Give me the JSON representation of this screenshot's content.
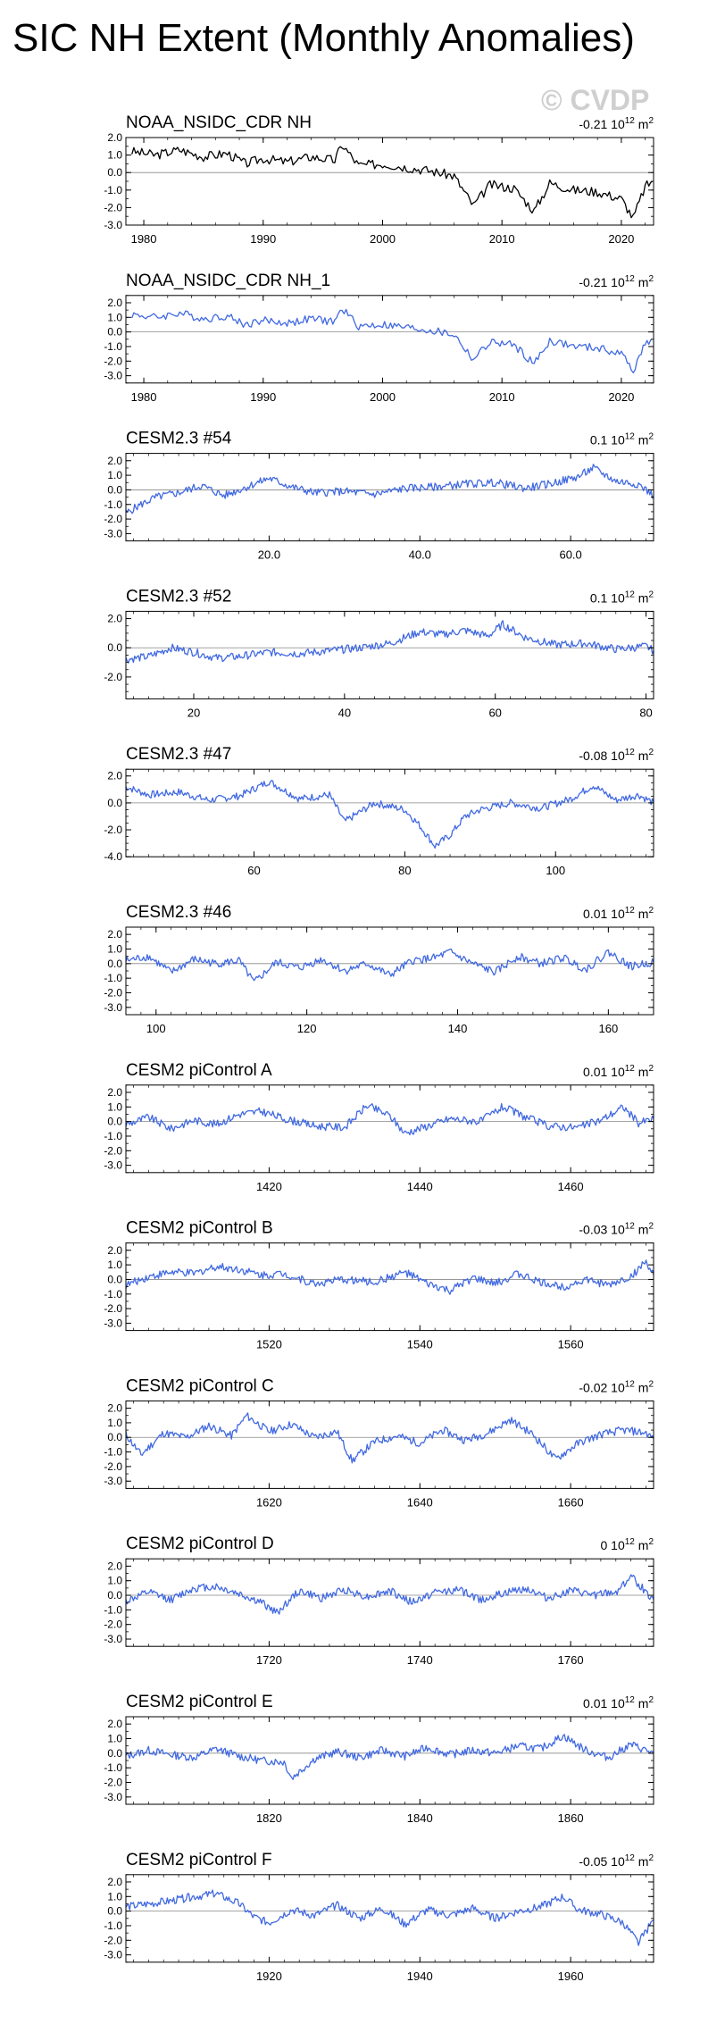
{
  "title": "SIC NH Extent (Monthly Anomalies)",
  "watermark": "© CVDP",
  "colors": {
    "observed": "#000000",
    "model": "#4169e1",
    "zero_line": "#888888"
  },
  "chart_data": [
    {
      "type": "line",
      "title": "NOAA_NSIDC_CDR NH",
      "stat": "-0.21",
      "units_suffix": "12",
      "units_tail": " m",
      "units_sup": "2",
      "color": "#000000",
      "xlim": [
        1978.5,
        2022.7
      ],
      "ylim": [
        -3.0,
        2.0
      ],
      "yticks": [
        -3,
        -2,
        -1,
        0,
        1,
        2
      ],
      "ytick_labels": [
        "-3.0",
        "-2.0",
        "-1.0",
        "0.0",
        "1.0",
        "2.0"
      ],
      "xticks": [
        1980,
        1990,
        2000,
        2010,
        2020
      ],
      "xtick_labels": [
        "1980",
        "1990",
        "2000",
        "2010",
        "2020"
      ],
      "x": [
        1979,
        1981,
        1983,
        1985,
        1987,
        1988.5,
        1990,
        1992,
        1994,
        1996,
        1996.6,
        1998,
        2000,
        2002,
        2004,
        2006,
        2007.6,
        2009,
        2011,
        2012.7,
        2014,
        2016,
        2018,
        2020,
        2021,
        2022,
        2022.6
      ],
      "y": [
        1.2,
        1.0,
        1.3,
        0.9,
        1.1,
        0.5,
        0.8,
        0.6,
        0.9,
        0.7,
        1.6,
        0.4,
        0.5,
        0.3,
        0.1,
        -0.2,
        -1.9,
        -0.7,
        -0.9,
        -2.2,
        -0.6,
        -1.0,
        -1.1,
        -1.5,
        -2.6,
        -0.8,
        -0.5
      ]
    },
    {
      "type": "line",
      "title": "NOAA_NSIDC_CDR NH_1",
      "stat": "-0.21",
      "units_suffix": "12",
      "units_tail": " m",
      "units_sup": "2",
      "color": "#4169e1",
      "xlim": [
        1978.5,
        2022.7
      ],
      "ylim": [
        -3.5,
        2.5
      ],
      "yticks": [
        -3,
        -2,
        -1,
        0,
        1,
        2
      ],
      "ytick_labels": [
        "-3.0",
        "-2.0",
        "-1.0",
        "0.0",
        "1.0",
        "2.0"
      ],
      "xticks": [
        1980,
        1990,
        2000,
        2010,
        2020
      ],
      "xtick_labels": [
        "1980",
        "1990",
        "2000",
        "2010",
        "2020"
      ],
      "x": [
        1979,
        1981,
        1983,
        1985,
        1987,
        1988.5,
        1990,
        1992,
        1994,
        1996,
        1996.6,
        1998,
        2000,
        2002,
        2004,
        2006,
        2007.6,
        2009,
        2011,
        2012.7,
        2014,
        2016,
        2018,
        2020,
        2021,
        2022,
        2022.6
      ],
      "y": [
        1.2,
        1.0,
        1.3,
        0.9,
        1.1,
        0.5,
        0.8,
        0.6,
        0.9,
        0.7,
        1.6,
        0.4,
        0.5,
        0.3,
        0.1,
        -0.2,
        -1.9,
        -0.7,
        -0.9,
        -2.2,
        -0.6,
        -1.0,
        -1.1,
        -1.5,
        -2.6,
        -0.8,
        -0.5
      ]
    },
    {
      "type": "line",
      "title": "CESM2.3 #54",
      "stat": "0.1",
      "units_suffix": "12",
      "units_tail": " m",
      "units_sup": "2",
      "color": "#4169e1",
      "xlim": [
        1,
        71
      ],
      "ylim": [
        -3.5,
        2.5
      ],
      "yticks": [
        -3,
        -2,
        -1,
        0,
        1,
        2
      ],
      "ytick_labels": [
        "-3.0",
        "-2.0",
        "-1.0",
        "0.0",
        "1.0",
        "2.0"
      ],
      "xticks": [
        20,
        40,
        60
      ],
      "xtick_labels": [
        "20.0",
        "40.0",
        "60.0"
      ],
      "x": [
        1,
        3,
        5,
        8,
        11,
        14,
        17,
        20,
        23,
        26,
        30,
        34,
        38,
        42,
        46,
        50,
        54,
        58,
        61,
        63,
        66,
        69,
        71
      ],
      "y": [
        -1.6,
        -1.0,
        -0.5,
        -0.2,
        0.3,
        -0.4,
        0.2,
        0.8,
        0.2,
        -0.2,
        -0.1,
        -0.3,
        0.1,
        0.2,
        0.4,
        0.5,
        0.1,
        0.5,
        0.9,
        1.5,
        0.6,
        0.4,
        -0.4
      ]
    },
    {
      "type": "line",
      "title": "CESM2.3 #52",
      "stat": "0.1",
      "units_suffix": "12",
      "units_tail": " m",
      "units_sup": "2",
      "color": "#4169e1",
      "xlim": [
        11,
        81
      ],
      "ylim": [
        -3.5,
        2.5
      ],
      "yticks": [
        -2,
        0,
        2
      ],
      "ytick_labels": [
        "-2.0",
        "0.0",
        "2.0"
      ],
      "xticks": [
        20,
        40,
        60,
        80
      ],
      "xtick_labels": [
        "20",
        "40",
        "60",
        "80"
      ],
      "x": [
        11,
        14,
        17,
        20,
        23,
        26,
        30,
        34,
        38,
        42,
        46,
        50,
        53,
        56,
        59,
        61,
        64,
        68,
        72,
        76,
        80,
        81
      ],
      "y": [
        -0.8,
        -0.6,
        0.0,
        -0.3,
        -0.7,
        -0.6,
        -0.3,
        -0.4,
        -0.2,
        0.0,
        0.3,
        1.1,
        0.9,
        1.2,
        0.8,
        1.6,
        0.7,
        0.2,
        0.3,
        -0.1,
        0.1,
        -0.2
      ]
    },
    {
      "type": "line",
      "title": "CESM2.3 #47",
      "stat": "-0.08",
      "units_suffix": "12",
      "units_tail": " m",
      "units_sup": "2",
      "color": "#4169e1",
      "xlim": [
        43,
        113
      ],
      "ylim": [
        -4.0,
        2.5
      ],
      "yticks": [
        -4,
        -2,
        0,
        2
      ],
      "ytick_labels": [
        "-4.0",
        "-2.0",
        "0.0",
        "2.0"
      ],
      "xticks": [
        60,
        80,
        100
      ],
      "xtick_labels": [
        "60",
        "80",
        "100"
      ],
      "x": [
        43,
        46,
        50,
        54,
        58,
        62,
        66,
        70,
        72,
        76,
        80,
        82,
        84,
        86,
        88,
        90,
        94,
        98,
        102,
        105,
        108,
        111,
        113
      ],
      "y": [
        1.2,
        0.6,
        0.8,
        0.2,
        0.5,
        1.6,
        0.3,
        0.6,
        -1.4,
        0.0,
        -0.5,
        -1.7,
        -3.2,
        -2.4,
        -1.0,
        -0.5,
        0.0,
        -0.4,
        0.3,
        1.3,
        0.2,
        0.6,
        0.0
      ]
    },
    {
      "type": "line",
      "title": "CESM2.3 #46",
      "stat": "0.01",
      "units_suffix": "12",
      "units_tail": " m",
      "units_sup": "2",
      "color": "#4169e1",
      "xlim": [
        96,
        166
      ],
      "ylim": [
        -3.5,
        2.5
      ],
      "yticks": [
        -3,
        -2,
        -1,
        0,
        1,
        2
      ],
      "ytick_labels": [
        "-3.0",
        "-2.0",
        "-1.0",
        "0.0",
        "1.0",
        "2.0"
      ],
      "xticks": [
        100,
        120,
        140,
        160
      ],
      "xtick_labels": [
        "100",
        "120",
        "140",
        "160"
      ],
      "x": [
        96,
        99,
        102,
        105,
        108,
        111,
        113,
        116,
        119,
        122,
        125,
        128,
        131,
        134,
        137,
        139,
        142,
        145,
        148,
        151,
        154,
        157,
        160,
        163,
        166
      ],
      "y": [
        0.2,
        0.5,
        -0.6,
        0.3,
        0.0,
        0.2,
        -1.3,
        0.1,
        -0.3,
        0.3,
        -0.5,
        0.0,
        -0.8,
        0.2,
        0.4,
        0.8,
        0.0,
        -0.6,
        0.5,
        0.0,
        0.4,
        -0.4,
        0.8,
        -0.2,
        0.1
      ]
    },
    {
      "type": "line",
      "title": "CESM2 piControl A",
      "stat": "0.01",
      "units_suffix": "12",
      "units_tail": " m",
      "units_sup": "2",
      "color": "#4169e1",
      "xlim": [
        1401,
        1471
      ],
      "ylim": [
        -3.5,
        2.5
      ],
      "yticks": [
        -3,
        -2,
        -1,
        0,
        1,
        2
      ],
      "ytick_labels": [
        "-3.0",
        "-2.0",
        "-1.0",
        "0.0",
        "1.0",
        "2.0"
      ],
      "xticks": [
        1420,
        1440,
        1460
      ],
      "xtick_labels": [
        "1420",
        "1440",
        "1460"
      ],
      "x": [
        1401,
        1404,
        1407,
        1410,
        1413,
        1416,
        1419,
        1422,
        1426,
        1430,
        1433,
        1436,
        1438,
        1441,
        1444,
        1448,
        1451,
        1454,
        1457,
        1461,
        1464,
        1467,
        1469,
        1471
      ],
      "y": [
        -0.2,
        0.3,
        -0.5,
        0.1,
        -0.2,
        0.5,
        0.7,
        0.2,
        -0.3,
        -0.4,
        1.1,
        0.4,
        -0.8,
        -0.3,
        0.2,
        0.0,
        1.0,
        0.3,
        -0.3,
        -0.4,
        0.1,
        1.0,
        -0.1,
        0.2
      ]
    },
    {
      "type": "line",
      "title": "CESM2 piControl B",
      "stat": "-0.03",
      "units_suffix": "12",
      "units_tail": " m",
      "units_sup": "2",
      "color": "#4169e1",
      "xlim": [
        1501,
        1571
      ],
      "ylim": [
        -3.5,
        2.5
      ],
      "yticks": [
        -3,
        -2,
        -1,
        0,
        1,
        2
      ],
      "ytick_labels": [
        "-3.0",
        "-2.0",
        "-1.0",
        "0.0",
        "1.0",
        "2.0"
      ],
      "xticks": [
        1520,
        1540,
        1560
      ],
      "xtick_labels": [
        "1520",
        "1540",
        "1560"
      ],
      "x": [
        1501,
        1504,
        1507,
        1510,
        1513,
        1516,
        1519,
        1522,
        1526,
        1530,
        1534,
        1538,
        1541,
        1544,
        1547,
        1550,
        1553,
        1556,
        1559,
        1562,
        1565,
        1568,
        1570,
        1571
      ],
      "y": [
        -0.4,
        0.2,
        0.5,
        0.4,
        0.9,
        0.7,
        0.3,
        0.4,
        -0.3,
        0.0,
        -0.2,
        0.5,
        -0.3,
        -0.8,
        0.1,
        -0.3,
        0.4,
        -0.2,
        -0.5,
        0.0,
        -0.4,
        0.2,
        1.2,
        0.3
      ]
    },
    {
      "type": "line",
      "title": "CESM2 piControl C",
      "stat": "-0.02",
      "units_suffix": "12",
      "units_tail": " m",
      "units_sup": "2",
      "color": "#4169e1",
      "xlim": [
        1601,
        1671
      ],
      "ylim": [
        -3.5,
        2.5
      ],
      "yticks": [
        -3,
        -2,
        -1,
        0,
        1,
        2
      ],
      "ytick_labels": [
        "-3.0",
        "-2.0",
        "-1.0",
        "0.0",
        "1.0",
        "2.0"
      ],
      "xticks": [
        1620,
        1640,
        1660
      ],
      "xtick_labels": [
        "1620",
        "1640",
        "1660"
      ],
      "x": [
        1601,
        1603,
        1606,
        1609,
        1612,
        1615,
        1617,
        1620,
        1623,
        1626,
        1629,
        1631,
        1634,
        1637,
        1640,
        1643,
        1646,
        1649,
        1652,
        1655,
        1658,
        1661,
        1664,
        1667,
        1670,
        1671
      ],
      "y": [
        0.2,
        -1.2,
        0.3,
        0.0,
        0.8,
        0.1,
        1.5,
        0.4,
        0.9,
        0.0,
        0.4,
        -1.6,
        -0.3,
        0.1,
        -0.4,
        0.5,
        -0.2,
        0.3,
        1.2,
        0.2,
        -1.5,
        -0.4,
        0.2,
        0.5,
        0.3,
        -0.1
      ]
    },
    {
      "type": "line",
      "title": "CESM2 piControl D",
      "stat": "0",
      "units_suffix": "12",
      "units_tail": " m",
      "units_sup": "2",
      "color": "#4169e1",
      "xlim": [
        1701,
        1771
      ],
      "ylim": [
        -3.5,
        2.5
      ],
      "yticks": [
        -3,
        -2,
        -1,
        0,
        1,
        2
      ],
      "ytick_labels": [
        "-3.0",
        "-2.0",
        "-1.0",
        "0.0",
        "1.0",
        "2.0"
      ],
      "xticks": [
        1720,
        1740,
        1760
      ],
      "xtick_labels": [
        "1720",
        "1740",
        "1760"
      ],
      "x": [
        1701,
        1704,
        1707,
        1710,
        1713,
        1716,
        1719,
        1721,
        1724,
        1727,
        1730,
        1733,
        1736,
        1739,
        1742,
        1745,
        1748,
        1751,
        1754,
        1757,
        1760,
        1763,
        1766,
        1768,
        1771
      ],
      "y": [
        -0.4,
        0.2,
        -0.3,
        0.5,
        0.6,
        0.1,
        -0.5,
        -1.2,
        0.3,
        -0.2,
        0.4,
        -0.1,
        0.3,
        -0.5,
        0.2,
        0.4,
        -0.3,
        0.1,
        0.5,
        -0.2,
        0.3,
        0.0,
        0.2,
        1.3,
        -0.3
      ]
    },
    {
      "type": "line",
      "title": "CESM2 piControl E",
      "stat": "0.01",
      "units_suffix": "12",
      "units_tail": " m",
      "units_sup": "2",
      "color": "#4169e1",
      "xlim": [
        1801,
        1871
      ],
      "ylim": [
        -3.5,
        2.5
      ],
      "yticks": [
        -3,
        -2,
        -1,
        0,
        1,
        2
      ],
      "ytick_labels": [
        "-3.0",
        "-2.0",
        "-1.0",
        "0.0",
        "1.0",
        "2.0"
      ],
      "xticks": [
        1820,
        1840,
        1860
      ],
      "xtick_labels": [
        "1820",
        "1840",
        "1860"
      ],
      "x": [
        1801,
        1804,
        1807,
        1810,
        1813,
        1816,
        1819,
        1822,
        1823,
        1826,
        1829,
        1832,
        1835,
        1838,
        1841,
        1844,
        1847,
        1850,
        1853,
        1856,
        1859,
        1862,
        1865,
        1868,
        1871
      ],
      "y": [
        -0.2,
        0.2,
        -0.1,
        -0.3,
        0.3,
        -0.2,
        -0.5,
        -0.6,
        -1.7,
        -0.4,
        0.1,
        -0.3,
        0.2,
        -0.2,
        0.4,
        -0.1,
        0.2,
        0.0,
        0.5,
        0.3,
        1.2,
        0.2,
        -0.3,
        0.6,
        0.0
      ]
    },
    {
      "type": "line",
      "title": "CESM2 piControl F",
      "stat": "-0.05",
      "units_suffix": "12",
      "units_tail": " m",
      "units_sup": "2",
      "color": "#4169e1",
      "xlim": [
        1901,
        1971
      ],
      "ylim": [
        -3.5,
        2.5
      ],
      "yticks": [
        -3,
        -2,
        -1,
        0,
        1,
        2
      ],
      "ytick_labels": [
        "-3.0",
        "-2.0",
        "-1.0",
        "0.0",
        "1.0",
        "2.0"
      ],
      "xticks": [
        1920,
        1940,
        1960
      ],
      "xtick_labels": [
        "1920",
        "1940",
        "1960"
      ],
      "x": [
        1901,
        1904,
        1907,
        1910,
        1913,
        1916,
        1918,
        1920,
        1923,
        1926,
        1929,
        1932,
        1935,
        1938,
        1941,
        1944,
        1947,
        1950,
        1953,
        1956,
        1959,
        1961,
        1964,
        1967,
        1969,
        1971
      ],
      "y": [
        0.3,
        0.5,
        0.7,
        1.0,
        1.2,
        0.5,
        -0.4,
        -0.8,
        0.1,
        -0.3,
        0.4,
        -0.5,
        0.2,
        -0.9,
        0.1,
        -0.3,
        0.2,
        -0.5,
        0.0,
        0.3,
        1.0,
        0.1,
        -0.2,
        -0.8,
        -2.2,
        -0.6
      ]
    }
  ]
}
